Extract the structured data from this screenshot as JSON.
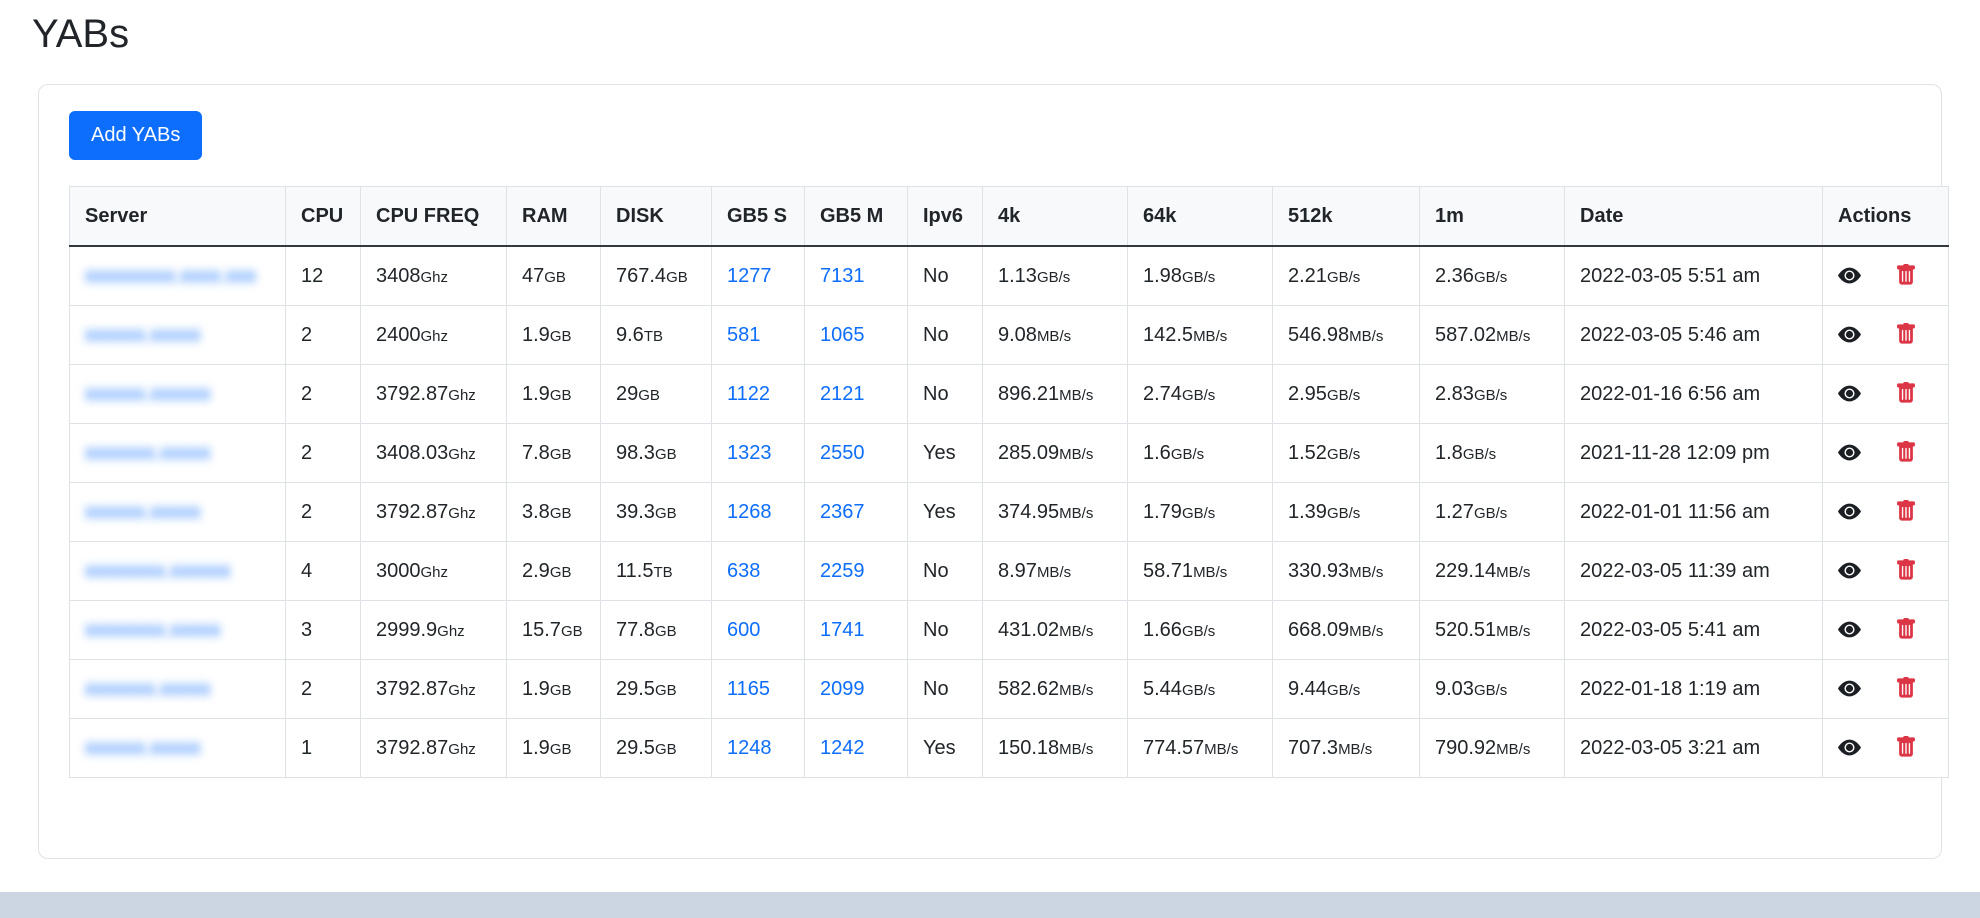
{
  "page": {
    "title": "YABs",
    "add_button_label": "Add YABs"
  },
  "colors": {
    "accent": "#0d6efd",
    "danger": "#dc3545",
    "link": "#0d6efd",
    "border": "#dee2e6"
  },
  "table": {
    "columns": [
      "Server",
      "CPU",
      "CPU FREQ",
      "RAM",
      "DISK",
      "GB5 S",
      "GB5 M",
      "Ipv6",
      "4k",
      "64k",
      "512k",
      "1m",
      "Date",
      "Actions"
    ],
    "rows": [
      {
        "server": "xxxxxxxxx.xxxx.xxx",
        "cpu": "12",
        "cpu_freq": {
          "value": "3408",
          "unit": "Ghz"
        },
        "ram": {
          "value": "47",
          "unit": "GB"
        },
        "disk": {
          "value": "767.4",
          "unit": "GB"
        },
        "gb5_s": "1277",
        "gb5_m": "7131",
        "ipv6": "No",
        "blk_4k": {
          "value": "1.13",
          "unit": "GB/s"
        },
        "blk_64k": {
          "value": "1.98",
          "unit": "GB/s"
        },
        "blk_512k": {
          "value": "2.21",
          "unit": "GB/s"
        },
        "blk_1m": {
          "value": "2.36",
          "unit": "GB/s"
        },
        "date": "2022-03-05 5:51 am"
      },
      {
        "server": "xxxxxx.xxxxx",
        "cpu": "2",
        "cpu_freq": {
          "value": "2400",
          "unit": "Ghz"
        },
        "ram": {
          "value": "1.9",
          "unit": "GB"
        },
        "disk": {
          "value": "9.6",
          "unit": "TB"
        },
        "gb5_s": "581",
        "gb5_m": "1065",
        "ipv6": "No",
        "blk_4k": {
          "value": "9.08",
          "unit": "MB/s"
        },
        "blk_64k": {
          "value": "142.5",
          "unit": "MB/s"
        },
        "blk_512k": {
          "value": "546.98",
          "unit": "MB/s"
        },
        "blk_1m": {
          "value": "587.02",
          "unit": "MB/s"
        },
        "date": "2022-03-05 5:46 am"
      },
      {
        "server": "xxxxxx.xxxxxx",
        "cpu": "2",
        "cpu_freq": {
          "value": "3792.87",
          "unit": "Ghz"
        },
        "ram": {
          "value": "1.9",
          "unit": "GB"
        },
        "disk": {
          "value": "29",
          "unit": "GB"
        },
        "gb5_s": "1122",
        "gb5_m": "2121",
        "ipv6": "No",
        "blk_4k": {
          "value": "896.21",
          "unit": "MB/s"
        },
        "blk_64k": {
          "value": "2.74",
          "unit": "GB/s"
        },
        "blk_512k": {
          "value": "2.95",
          "unit": "GB/s"
        },
        "blk_1m": {
          "value": "2.83",
          "unit": "GB/s"
        },
        "date": "2022-01-16 6:56 am"
      },
      {
        "server": "xxxxxxx.xxxxx",
        "cpu": "2",
        "cpu_freq": {
          "value": "3408.03",
          "unit": "Ghz"
        },
        "ram": {
          "value": "7.8",
          "unit": "GB"
        },
        "disk": {
          "value": "98.3",
          "unit": "GB"
        },
        "gb5_s": "1323",
        "gb5_m": "2550",
        "ipv6": "Yes",
        "blk_4k": {
          "value": "285.09",
          "unit": "MB/s"
        },
        "blk_64k": {
          "value": "1.6",
          "unit": "GB/s"
        },
        "blk_512k": {
          "value": "1.52",
          "unit": "GB/s"
        },
        "blk_1m": {
          "value": "1.8",
          "unit": "GB/s"
        },
        "date": "2021-11-28 12:09 pm"
      },
      {
        "server": "xxxxxx.xxxxx",
        "cpu": "2",
        "cpu_freq": {
          "value": "3792.87",
          "unit": "Ghz"
        },
        "ram": {
          "value": "3.8",
          "unit": "GB"
        },
        "disk": {
          "value": "39.3",
          "unit": "GB"
        },
        "gb5_s": "1268",
        "gb5_m": "2367",
        "ipv6": "Yes",
        "blk_4k": {
          "value": "374.95",
          "unit": "MB/s"
        },
        "blk_64k": {
          "value": "1.79",
          "unit": "GB/s"
        },
        "blk_512k": {
          "value": "1.39",
          "unit": "GB/s"
        },
        "blk_1m": {
          "value": "1.27",
          "unit": "GB/s"
        },
        "date": "2022-01-01 11:56 am"
      },
      {
        "server": "xxxxxxxx.xxxxxx",
        "cpu": "4",
        "cpu_freq": {
          "value": "3000",
          "unit": "Ghz"
        },
        "ram": {
          "value": "2.9",
          "unit": "GB"
        },
        "disk": {
          "value": "11.5",
          "unit": "TB"
        },
        "gb5_s": "638",
        "gb5_m": "2259",
        "ipv6": "No",
        "blk_4k": {
          "value": "8.97",
          "unit": "MB/s"
        },
        "blk_64k": {
          "value": "58.71",
          "unit": "MB/s"
        },
        "blk_512k": {
          "value": "330.93",
          "unit": "MB/s"
        },
        "blk_1m": {
          "value": "229.14",
          "unit": "MB/s"
        },
        "date": "2022-03-05 11:39 am"
      },
      {
        "server": "xxxxxxxx.xxxxx",
        "cpu": "3",
        "cpu_freq": {
          "value": "2999.9",
          "unit": "Ghz"
        },
        "ram": {
          "value": "15.7",
          "unit": "GB"
        },
        "disk": {
          "value": "77.8",
          "unit": "GB"
        },
        "gb5_s": "600",
        "gb5_m": "1741",
        "ipv6": "No",
        "blk_4k": {
          "value": "431.02",
          "unit": "MB/s"
        },
        "blk_64k": {
          "value": "1.66",
          "unit": "GB/s"
        },
        "blk_512k": {
          "value": "668.09",
          "unit": "MB/s"
        },
        "blk_1m": {
          "value": "520.51",
          "unit": "MB/s"
        },
        "date": "2022-03-05 5:41 am"
      },
      {
        "server": "xxxxxxx.xxxxx",
        "cpu": "2",
        "cpu_freq": {
          "value": "3792.87",
          "unit": "Ghz"
        },
        "ram": {
          "value": "1.9",
          "unit": "GB"
        },
        "disk": {
          "value": "29.5",
          "unit": "GB"
        },
        "gb5_s": "1165",
        "gb5_m": "2099",
        "ipv6": "No",
        "blk_4k": {
          "value": "582.62",
          "unit": "MB/s"
        },
        "blk_64k": {
          "value": "5.44",
          "unit": "GB/s"
        },
        "blk_512k": {
          "value": "9.44",
          "unit": "GB/s"
        },
        "blk_1m": {
          "value": "9.03",
          "unit": "GB/s"
        },
        "date": "2022-01-18 1:19 am"
      },
      {
        "server": "xxxxxx.xxxxx",
        "cpu": "1",
        "cpu_freq": {
          "value": "3792.87",
          "unit": "Ghz"
        },
        "ram": {
          "value": "1.9",
          "unit": "GB"
        },
        "disk": {
          "value": "29.5",
          "unit": "GB"
        },
        "gb5_s": "1248",
        "gb5_m": "1242",
        "ipv6": "Yes",
        "blk_4k": {
          "value": "150.18",
          "unit": "MB/s"
        },
        "blk_64k": {
          "value": "774.57",
          "unit": "MB/s"
        },
        "blk_512k": {
          "value": "707.3",
          "unit": "MB/s"
        },
        "blk_1m": {
          "value": "790.92",
          "unit": "MB/s"
        },
        "date": "2022-03-05 3:21 am"
      }
    ]
  }
}
